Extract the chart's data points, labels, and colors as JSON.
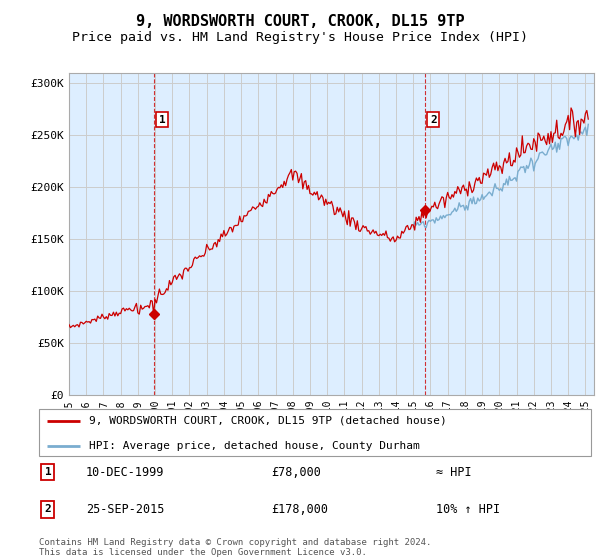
{
  "title": "9, WORDSWORTH COURT, CROOK, DL15 9TP",
  "subtitle": "Price paid vs. HM Land Registry's House Price Index (HPI)",
  "ylim": [
    0,
    310000
  ],
  "yticks": [
    0,
    50000,
    100000,
    150000,
    200000,
    250000,
    300000
  ],
  "ytick_labels": [
    "£0",
    "£50K",
    "£100K",
    "£150K",
    "£200K",
    "£250K",
    "£300K"
  ],
  "red_color": "#cc0000",
  "blue_color": "#7aadcf",
  "plot_bg_color": "#ddeeff",
  "marker1_value": 78000,
  "marker2_value": 178000,
  "legend_line1": "9, WORDSWORTH COURT, CROOK, DL15 9TP (detached house)",
  "legend_line2": "HPI: Average price, detached house, County Durham",
  "annotation1_date": "10-DEC-1999",
  "annotation1_price": "£78,000",
  "annotation1_hpi": "≈ HPI",
  "annotation2_date": "25-SEP-2015",
  "annotation2_price": "£178,000",
  "annotation2_hpi": "10% ↑ HPI",
  "footer": "Contains HM Land Registry data © Crown copyright and database right 2024.\nThis data is licensed under the Open Government Licence v3.0.",
  "title_fontsize": 11,
  "subtitle_fontsize": 9.5,
  "tick_fontsize": 8,
  "bg_color": "#ffffff",
  "grid_color": "#cccccc"
}
